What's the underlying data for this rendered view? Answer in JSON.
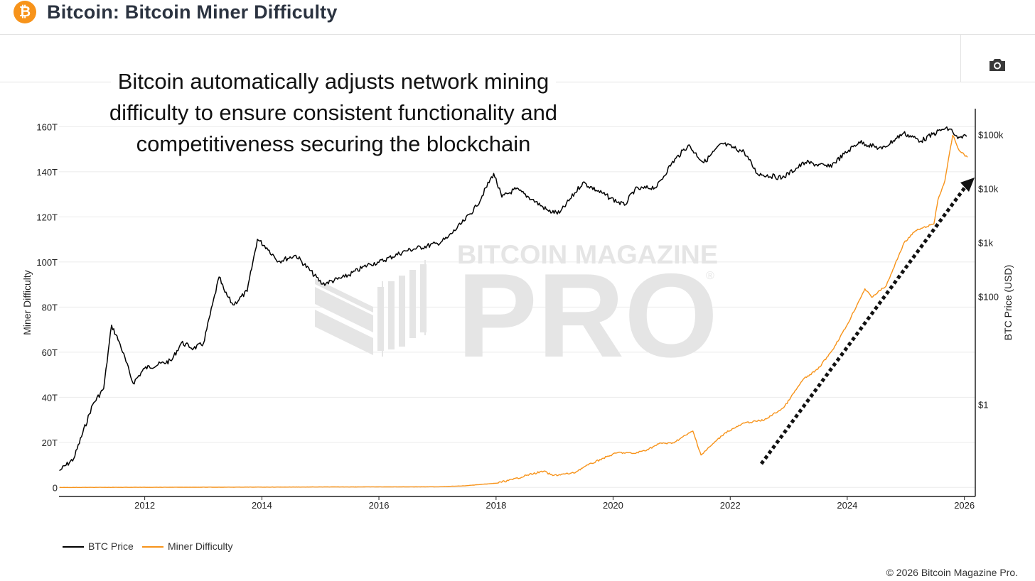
{
  "header": {
    "logo_glyph": "₿",
    "title": "Bitcoin: Bitcoin Miner Difficulty"
  },
  "toolbar": {
    "camera_icon": "camera-icon"
  },
  "annotation": {
    "line1": "Bitcoin automatically adjusts network mining",
    "line2": "difficulty to ensure consistent functionality and",
    "line3": "competitiveness securing the blockchain"
  },
  "watermark": {
    "top": "BITCOIN MAGAZINE",
    "main": "PRO",
    "mark": "®"
  },
  "footer": {
    "copyright": "© 2026 Bitcoin Magazine Pro."
  },
  "colors": {
    "btc_price": "#000000",
    "miner_difficulty": "#f7931a",
    "logo": "#f7931a"
  },
  "chart_data": {
    "type": "line",
    "title": "",
    "xlabel": "",
    "ylabel": "Miner Difficulty",
    "y2label": "BTC Price (USD)",
    "x_range": [
      "2010-07-15",
      "2026-03-10"
    ],
    "ylim": [
      -4,
      168
    ],
    "y2_scale": "log",
    "y2lim": [
      0.02,
      300000
    ],
    "x_ticks": [
      "2012",
      "2014",
      "2016",
      "2018",
      "2020",
      "2022",
      "2024",
      "2026"
    ],
    "y_ticks": [
      {
        "value": 0,
        "label": "0"
      },
      {
        "value": 20,
        "label": "20T"
      },
      {
        "value": 40,
        "label": "40T"
      },
      {
        "value": 60,
        "label": "60T"
      },
      {
        "value": 80,
        "label": "80T"
      },
      {
        "value": 100,
        "label": "100T"
      },
      {
        "value": 120,
        "label": "120T"
      },
      {
        "value": 140,
        "label": "140T"
      },
      {
        "value": 160,
        "label": "160T"
      }
    ],
    "y2_ticks": [
      {
        "value": 1,
        "label": "$1"
      },
      {
        "value": 100,
        "label": "$100"
      },
      {
        "value": 1000,
        "label": "$1k"
      },
      {
        "value": 10000,
        "label": "$10k"
      },
      {
        "value": 100000,
        "label": "$100k"
      }
    ],
    "grid": true,
    "legend_position": "bottom-left",
    "series": [
      {
        "name": "BTC Price",
        "axis": "right",
        "unit": "USD",
        "points": [
          [
            "2010-07-18",
            0.06
          ],
          [
            "2010-10-15",
            0.1
          ],
          [
            "2011-02-10",
            1.0
          ],
          [
            "2011-04-20",
            2.0
          ],
          [
            "2011-06-08",
            29.6
          ],
          [
            "2011-08-01",
            13.0
          ],
          [
            "2011-10-20",
            2.5
          ],
          [
            "2011-12-31",
            4.7
          ],
          [
            "2012-06-15",
            6.5
          ],
          [
            "2012-08-17",
            14.0
          ],
          [
            "2012-11-01",
            11.0
          ],
          [
            "2013-01-01",
            13.5
          ],
          [
            "2013-04-09",
            230
          ],
          [
            "2013-05-15",
            120
          ],
          [
            "2013-07-05",
            70
          ],
          [
            "2013-10-01",
            125
          ],
          [
            "2013-12-04",
            1150
          ],
          [
            "2014-02-01",
            800
          ],
          [
            "2014-04-15",
            450
          ],
          [
            "2014-08-01",
            580
          ],
          [
            "2015-01-14",
            170
          ],
          [
            "2015-06-01",
            230
          ],
          [
            "2015-11-04",
            400
          ],
          [
            "2016-01-01",
            430
          ],
          [
            "2016-06-15",
            700
          ],
          [
            "2016-12-31",
            960
          ],
          [
            "2017-03-01",
            1200
          ],
          [
            "2017-06-15",
            2500
          ],
          [
            "2017-09-01",
            4700
          ],
          [
            "2017-12-17",
            19000
          ],
          [
            "2018-02-06",
            6900
          ],
          [
            "2018-05-05",
            9800
          ],
          [
            "2018-08-15",
            6300
          ],
          [
            "2018-11-25",
            3800
          ],
          [
            "2019-02-01",
            3500
          ],
          [
            "2019-06-26",
            12900
          ],
          [
            "2019-12-18",
            6600
          ],
          [
            "2020-03-12",
            4900
          ],
          [
            "2020-05-15",
            9500
          ],
          [
            "2020-10-01",
            10800
          ],
          [
            "2020-12-31",
            29000
          ],
          [
            "2021-04-14",
            63500
          ],
          [
            "2021-07-20",
            30000
          ],
          [
            "2021-11-10",
            68000
          ],
          [
            "2022-03-29",
            47500
          ],
          [
            "2022-06-18",
            18900
          ],
          [
            "2022-11-21",
            15700
          ],
          [
            "2023-04-14",
            30500
          ],
          [
            "2023-09-11",
            25100
          ],
          [
            "2024-03-14",
            73000
          ],
          [
            "2024-08-05",
            54000
          ],
          [
            "2024-12-17",
            106000
          ],
          [
            "2025-04-07",
            76000
          ],
          [
            "2025-08-14",
            124000
          ],
          [
            "2025-10-06",
            126000
          ],
          [
            "2025-11-21",
            84000
          ],
          [
            "2026-01-15",
            92000
          ]
        ]
      },
      {
        "name": "Miner Difficulty",
        "axis": "left",
        "unit": "T",
        "points": [
          [
            "2010-07-18",
            0
          ],
          [
            "2017-01-01",
            0.3
          ],
          [
            "2017-06-15",
            0.7
          ],
          [
            "2018-01-01",
            1.9
          ],
          [
            "2018-04-15",
            3.5
          ],
          [
            "2018-07-15",
            5.5
          ],
          [
            "2018-10-25",
            7.2
          ],
          [
            "2018-12-20",
            5.3
          ],
          [
            "2019-05-01",
            6.4
          ],
          [
            "2019-07-01",
            9.0
          ],
          [
            "2019-11-01",
            13.0
          ],
          [
            "2020-02-01",
            15.5
          ],
          [
            "2020-05-15",
            15.1
          ],
          [
            "2020-08-01",
            16.8
          ],
          [
            "2020-10-26",
            19.7
          ],
          [
            "2021-01-01",
            19.5
          ],
          [
            "2021-05-13",
            25.0
          ],
          [
            "2021-07-03",
            14.4
          ],
          [
            "2021-09-01",
            18.4
          ],
          [
            "2021-12-01",
            24.3
          ],
          [
            "2022-04-01",
            28.6
          ],
          [
            "2022-08-01",
            29.9
          ],
          [
            "2022-12-01",
            35.4
          ],
          [
            "2023-04-01",
            47.9
          ],
          [
            "2023-07-01",
            52.4
          ],
          [
            "2023-10-01",
            61.0
          ],
          [
            "2023-12-31",
            72.0
          ],
          [
            "2024-04-20",
            88.1
          ],
          [
            "2024-06-01",
            84.4
          ],
          [
            "2024-09-01",
            89.5
          ],
          [
            "2024-12-20",
            108.5
          ],
          [
            "2025-03-01",
            113.8
          ],
          [
            "2025-06-25",
            116.9
          ],
          [
            "2025-07-20",
            127.6
          ],
          [
            "2025-09-01",
            136.0
          ],
          [
            "2025-10-20",
            156.2
          ],
          [
            "2025-12-01",
            149.3
          ],
          [
            "2026-01-20",
            146.5
          ]
        ]
      }
    ]
  },
  "legend": [
    {
      "name": "BTC Price",
      "color": "#000000"
    },
    {
      "name": "Miner Difficulty",
      "color": "#f7931a"
    }
  ]
}
